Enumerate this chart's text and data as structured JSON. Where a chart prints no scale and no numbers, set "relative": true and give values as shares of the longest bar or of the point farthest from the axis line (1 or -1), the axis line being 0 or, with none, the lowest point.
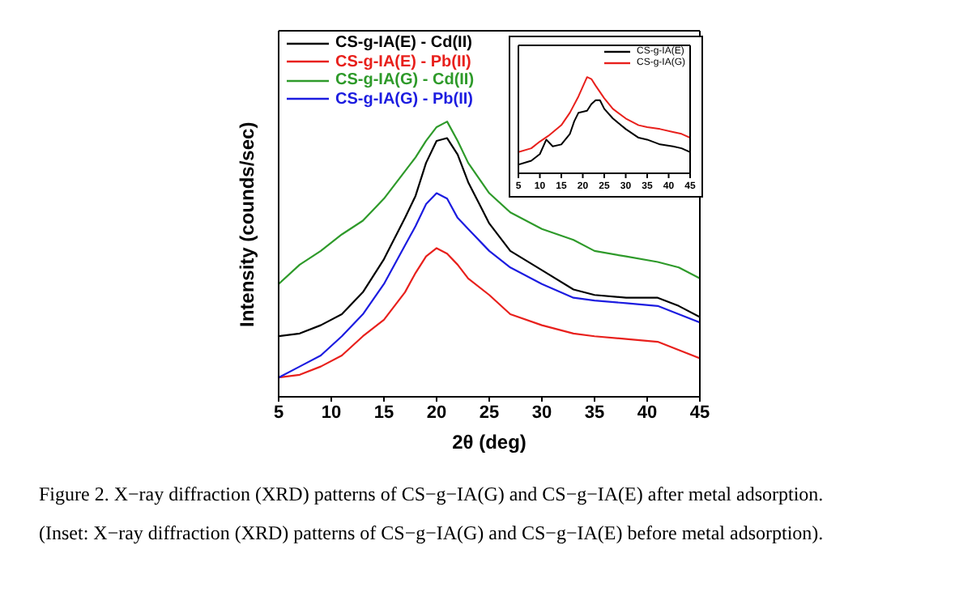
{
  "chart_data": [
    {
      "type": "line",
      "relative": true,
      "xlabel": "2θ (deg)",
      "ylabel": "Intensity (counds/sec)",
      "xlim": [
        5,
        45
      ],
      "xticks": [
        5,
        10,
        15,
        20,
        25,
        30,
        35,
        40,
        45
      ],
      "legend": "top left",
      "line_style": "solid",
      "marker": "none",
      "x": [
        5,
        7,
        9,
        11,
        13,
        15,
        17,
        18,
        19,
        20,
        21,
        22,
        23,
        25,
        27,
        30,
        33,
        35,
        38,
        41,
        43,
        45
      ],
      "series": [
        {
          "name": "CS-g-IA(E) - Cd(II)",
          "color": "#000000",
          "values": [
            0.22,
            0.23,
            0.26,
            0.3,
            0.38,
            0.5,
            0.65,
            0.73,
            0.85,
            0.93,
            0.94,
            0.88,
            0.78,
            0.63,
            0.53,
            0.46,
            0.39,
            0.37,
            0.36,
            0.36,
            0.33,
            0.29
          ]
        },
        {
          "name": "CS-g-IA(E) - Pb(II)",
          "color": "#e8201c",
          "values": [
            0.07,
            0.08,
            0.11,
            0.15,
            0.22,
            0.28,
            0.38,
            0.45,
            0.51,
            0.54,
            0.52,
            0.48,
            0.43,
            0.37,
            0.3,
            0.26,
            0.23,
            0.22,
            0.21,
            0.2,
            0.17,
            0.14
          ]
        },
        {
          "name": "CS-g-IA(G) - Cd(II)",
          "color": "#2e9a2a",
          "values": [
            0.41,
            0.48,
            0.53,
            0.59,
            0.64,
            0.72,
            0.82,
            0.87,
            0.93,
            0.98,
            1.0,
            0.93,
            0.85,
            0.74,
            0.67,
            0.61,
            0.57,
            0.53,
            0.51,
            0.49,
            0.47,
            0.43
          ]
        },
        {
          "name": "CS-g-IA(G) - Pb(II)",
          "color": "#1c1ce0",
          "values": [
            0.07,
            0.11,
            0.15,
            0.22,
            0.3,
            0.41,
            0.55,
            0.62,
            0.7,
            0.74,
            0.72,
            0.65,
            0.61,
            0.53,
            0.47,
            0.41,
            0.36,
            0.35,
            0.34,
            0.33,
            0.3,
            0.27
          ]
        }
      ],
      "annotations": [
        "Figure 2. X−ray diffraction (XRD) patterns of CS−g−IA(G) and CS−g−IA(E) after metal adsorption.",
        "(Inset: X−ray diffraction (XRD) patterns of CS−g−IA(G) and CS−g−IA(E) before metal adsorption)."
      ]
    },
    {
      "type": "line",
      "relative": true,
      "xlim": [
        5,
        45
      ],
      "xticks": [
        5,
        10,
        15,
        20,
        25,
        30,
        35,
        40,
        45
      ],
      "legend": "top right",
      "line_style": "solid",
      "marker": "none",
      "series": [
        {
          "name": "CS-g-IA(E)",
          "color": "#000000",
          "x": [
            5,
            8,
            10,
            11.5,
            13,
            15,
            17,
            18,
            19,
            21,
            22,
            23,
            24,
            25,
            27,
            30,
            33,
            35,
            38,
            41,
            43,
            45
          ],
          "values": [
            0.09,
            0.13,
            0.2,
            0.35,
            0.28,
            0.3,
            0.41,
            0.54,
            0.63,
            0.65,
            0.72,
            0.76,
            0.76,
            0.67,
            0.57,
            0.46,
            0.37,
            0.35,
            0.3,
            0.28,
            0.26,
            0.22
          ]
        },
        {
          "name": "CS-g-IA(G)",
          "color": "#e8201c",
          "x": [
            5,
            8,
            10,
            12,
            15,
            17,
            19,
            21,
            22,
            23,
            25,
            27,
            30,
            33,
            35,
            38,
            41,
            43,
            45
          ],
          "values": [
            0.22,
            0.26,
            0.33,
            0.39,
            0.5,
            0.63,
            0.8,
            1.0,
            0.98,
            0.91,
            0.78,
            0.67,
            0.57,
            0.5,
            0.48,
            0.46,
            0.43,
            0.41,
            0.37
          ]
        }
      ]
    }
  ]
}
